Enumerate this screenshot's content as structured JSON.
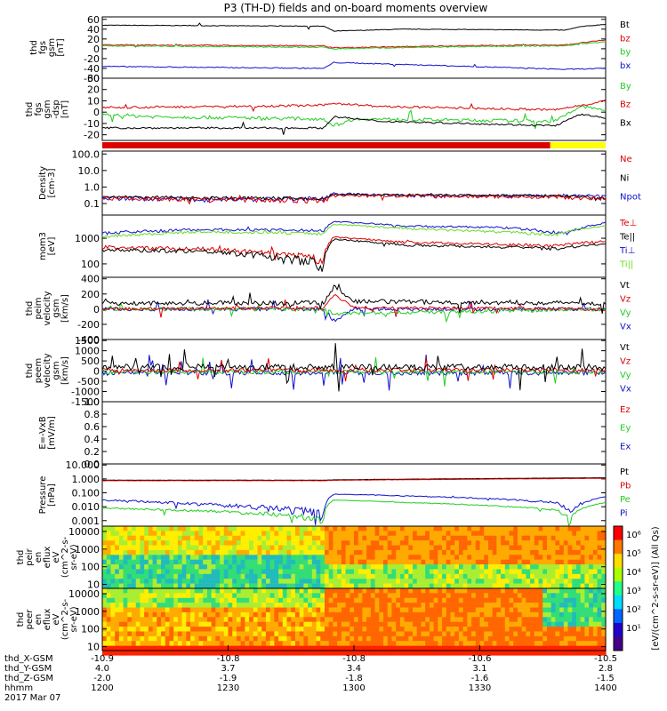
{
  "title": "P3 (TH-D) fields and on-board moments overview",
  "colors": {
    "black": "#000000",
    "red": "#dd0000",
    "green": "#22cc22",
    "blue": "#1111cc",
    "lime": "#66dd22",
    "yellow": "#ffff00"
  },
  "panels": [
    {
      "ylabel": [
        "thd",
        "fgs",
        "gsm",
        "[nT]"
      ],
      "ticks": [
        {
          "v": 60,
          "l": "60"
        },
        {
          "v": 40,
          "l": "40"
        },
        {
          "v": 20,
          "l": "20"
        },
        {
          "v": 0,
          "l": "0"
        },
        {
          "v": -20,
          "l": "-20"
        },
        {
          "v": -40,
          "l": "-40"
        },
        {
          "v": -60,
          "l": "-60"
        }
      ],
      "ylim": [
        -60,
        65
      ],
      "log": false,
      "legend": [
        {
          "text": "Bt",
          "color": "black"
        },
        {
          "text": "bz",
          "color": "red"
        },
        {
          "text": "by",
          "color": "green"
        },
        {
          "text": "bx",
          "color": "blue"
        }
      ]
    },
    {
      "ylabel": [
        "thd",
        "fgs",
        "gsm",
        "-dsp",
        "[nT]"
      ],
      "ticks": [
        {
          "v": 30,
          "l": "30"
        },
        {
          "v": 20,
          "l": "20"
        },
        {
          "v": 10,
          "l": "10"
        },
        {
          "v": 0,
          "l": "0"
        },
        {
          "v": -10,
          "l": "-10"
        },
        {
          "v": -20,
          "l": "-20"
        }
      ],
      "ylim": [
        -25,
        30
      ],
      "log": false,
      "legend": [
        {
          "text": "By",
          "color": "green"
        },
        {
          "text": "Bz",
          "color": "red"
        },
        {
          "text": "Bx",
          "color": "black"
        }
      ]
    },
    {
      "ylabel": [
        "Density",
        "[cm-3]"
      ],
      "ticks": [
        {
          "v": 100,
          "l": "100.0"
        },
        {
          "v": 10,
          "l": "10.0"
        },
        {
          "v": 1,
          "l": "1.0"
        },
        {
          "v": 0.1,
          "l": "0.1"
        }
      ],
      "ylim": [
        0.02,
        150
      ],
      "log": true,
      "legend": [
        {
          "text": "Ne",
          "color": "red"
        },
        {
          "text": "Ni",
          "color": "black"
        },
        {
          "text": "Npot",
          "color": "blue"
        }
      ]
    },
    {
      "ylabel": [
        "mom3",
        "[eV]"
      ],
      "ticks": [
        {
          "v": 1000,
          "l": "1000"
        },
        {
          "v": 100,
          "l": "100"
        }
      ],
      "ylim": [
        30,
        8000
      ],
      "log": true,
      "legend": [
        {
          "text": "Te⊥",
          "color": "red"
        },
        {
          "text": "Te||",
          "color": "black"
        },
        {
          "text": "Ti⊥",
          "color": "blue"
        },
        {
          "text": "Ti||",
          "color": "lime"
        }
      ]
    },
    {
      "ylabel": [
        "thd",
        "peim",
        "velocity",
        "gsm",
        "[km/s]"
      ],
      "ticks": [
        {
          "v": 400,
          "l": "400"
        },
        {
          "v": 200,
          "l": "200"
        },
        {
          "v": 0,
          "l": "0"
        },
        {
          "v": -200,
          "l": "-200"
        },
        {
          "v": -400,
          "l": "-400"
        }
      ],
      "ylim": [
        -400,
        420
      ],
      "log": false,
      "legend": [
        {
          "text": "Vt",
          "color": "black"
        },
        {
          "text": "Vz",
          "color": "red"
        },
        {
          "text": "Vy",
          "color": "green"
        },
        {
          "text": "Vx",
          "color": "blue"
        }
      ]
    },
    {
      "ylabel": [
        "thd",
        "peem",
        "velocity",
        "gsm",
        "[km/s]"
      ],
      "ticks": [
        {
          "v": 1500,
          "l": "1500"
        },
        {
          "v": 1000,
          "l": "1000"
        },
        {
          "v": 500,
          "l": "500"
        },
        {
          "v": 0,
          "l": "0"
        },
        {
          "v": -500,
          "l": "-500"
        },
        {
          "v": -1000,
          "l": "-1000"
        },
        {
          "v": -1500,
          "l": "-1500"
        }
      ],
      "ylim": [
        -1500,
        1550
      ],
      "log": false,
      "legend": [
        {
          "text": "Vt",
          "color": "black"
        },
        {
          "text": "Vz",
          "color": "red"
        },
        {
          "text": "Vy",
          "color": "green"
        },
        {
          "text": "Vx",
          "color": "blue"
        }
      ]
    },
    {
      "ylabel": [
        "E=-VxB",
        "[mV/m]"
      ],
      "ticks": [
        {
          "v": 1,
          "l": "1.0"
        },
        {
          "v": 0.8,
          "l": "0.8"
        },
        {
          "v": 0.6,
          "l": "0.6"
        },
        {
          "v": 0.4,
          "l": "0.4"
        },
        {
          "v": 0.2,
          "l": "0.2"
        },
        {
          "v": 0,
          "l": "0.0"
        }
      ],
      "ylim": [
        0,
        1
      ],
      "log": false,
      "legend": [
        {
          "text": "Ez",
          "color": "red"
        },
        {
          "text": "Ey",
          "color": "green"
        },
        {
          "text": "Ex",
          "color": "blue"
        }
      ]
    },
    {
      "ylabel": [
        "Pressure",
        "[nPa]"
      ],
      "ticks": [
        {
          "v": 10,
          "l": "10.000"
        },
        {
          "v": 1,
          "l": "1.000"
        },
        {
          "v": 0.1,
          "l": "0.100"
        },
        {
          "v": 0.01,
          "l": "0.010"
        },
        {
          "v": 0.001,
          "l": "0.001"
        }
      ],
      "ylim": [
        0.0004,
        12
      ],
      "log": true,
      "legend": [
        {
          "text": "Pt",
          "color": "black"
        },
        {
          "text": "Pb",
          "color": "red"
        },
        {
          "text": "Pe",
          "color": "green"
        },
        {
          "text": "Pi",
          "color": "blue"
        }
      ]
    },
    {
      "ylabel": [
        "thd",
        "peir",
        "en",
        "eflux",
        "eV",
        "(cm^2-s-",
        "sr-eV)"
      ],
      "ticks": [
        {
          "v": 10000,
          "l": "10000"
        },
        {
          "v": 1000,
          "l": "1000"
        },
        {
          "v": 100,
          "l": "100"
        },
        {
          "v": 10,
          "l": "10"
        }
      ],
      "ylim": [
        6,
        20000
      ],
      "log": true,
      "legend": []
    },
    {
      "ylabel": [
        "thd",
        "peer",
        "en",
        "eflux",
        "eV",
        "(cm^2-s-",
        "sr-eV)"
      ],
      "ticks": [
        {
          "v": 10000,
          "l": "10000"
        },
        {
          "v": 1000,
          "l": "1000"
        },
        {
          "v": 100,
          "l": "100"
        },
        {
          "v": 10,
          "l": "10"
        }
      ],
      "ylim": [
        6,
        20000
      ],
      "log": true,
      "legend": []
    }
  ],
  "colorbar": {
    "label": "[eV/(cm^2-s-sr-eV)] (All Qs)",
    "ticks": [
      "10⁶",
      "10⁵",
      "10⁴",
      "10³",
      "10²",
      "10¹"
    ]
  },
  "xaxis": {
    "rows": [
      {
        "label": "thd_X-GSM",
        "values": [
          "-10.9",
          "-10.8",
          "-10.8",
          "-10.6",
          "-10.5"
        ]
      },
      {
        "label": "thd_Y-GSM",
        "values": [
          "4.0",
          "3.7",
          "3.4",
          "3.1",
          "2.8"
        ]
      },
      {
        "label": "thd_Z-GSM",
        "values": [
          "-2.0",
          "-1.9",
          "-1.8",
          "-1.6",
          "-1.5"
        ]
      },
      {
        "label": "hhmm",
        "values": [
          "1200",
          "1230",
          "1300",
          "1330",
          "1400"
        ]
      }
    ],
    "date": "2017 Mar 07"
  },
  "chart_data": {
    "type": "line",
    "title": "P3 (TH-D) fields and on-board moments overview",
    "x": [
      "1200",
      "1230",
      "1300",
      "1330",
      "1400"
    ],
    "xlabel": "hhmm",
    "series": [
      {
        "name": "Bt",
        "values": [
          44,
          44,
          36,
          40,
          50
        ]
      },
      {
        "name": "bz",
        "values": [
          8,
          6,
          5,
          8,
          18
        ]
      },
      {
        "name": "by",
        "values": [
          6,
          2,
          3,
          5,
          15
        ]
      },
      {
        "name": "bx",
        "values": [
          -35,
          -40,
          -28,
          -38,
          -40
        ]
      },
      {
        "name": "Ne",
        "values": [
          0.25,
          0.3,
          0.3,
          0.3,
          0.2
        ]
      },
      {
        "name": "Ti⊥",
        "values": [
          2000,
          2500,
          3500,
          2500,
          4000
        ]
      },
      {
        "name": "Te⊥",
        "values": [
          400,
          350,
          1000,
          700,
          700
        ]
      },
      {
        "name": "Pt",
        "values": [
          0.8,
          0.8,
          0.8,
          0.8,
          1.2
        ]
      },
      {
        "name": "Pi",
        "values": [
          0.05,
          0.04,
          0.12,
          0.1,
          0.03
        ]
      }
    ]
  }
}
